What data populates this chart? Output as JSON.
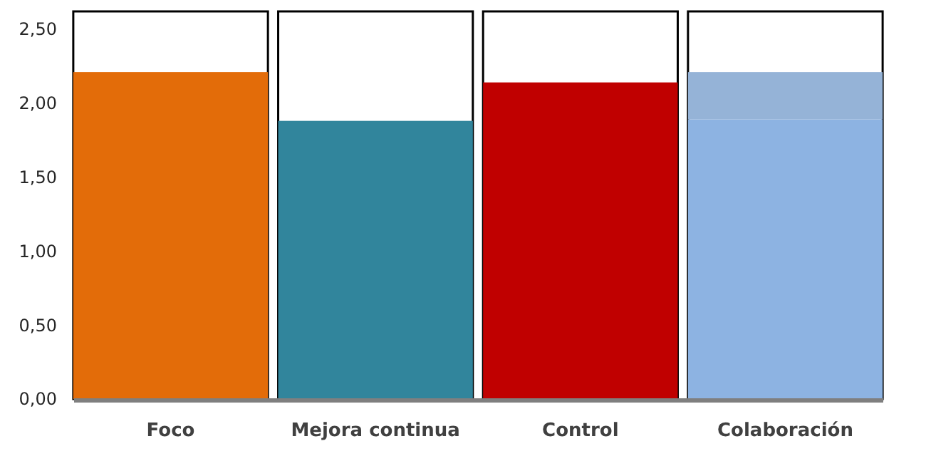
{
  "chart_data": {
    "type": "bar",
    "stacked": true,
    "categories": [
      "Foco",
      "Mejora continua",
      "Control",
      "Colaboración"
    ],
    "series": [
      {
        "colors": [
          "#e36c09",
          "#31859c",
          "#c00000",
          "#8db3e2"
        ],
        "values": [
          2.21,
          1.88,
          2.14,
          1.89
        ]
      },
      {
        "color": "#95b3d7",
        "values": [
          null,
          null,
          null,
          0.32
        ]
      }
    ],
    "ylim": [
      0,
      2.62
    ],
    "yticks": [
      {
        "value": 0,
        "label": "0,00"
      },
      {
        "value": 0.5,
        "label": "0,50"
      },
      {
        "value": 1,
        "label": "1,00"
      },
      {
        "value": 1.5,
        "label": "1,50"
      },
      {
        "value": 2,
        "label": "2,00"
      },
      {
        "value": 2.5,
        "label": "2,50"
      }
    ],
    "grid": false
  }
}
